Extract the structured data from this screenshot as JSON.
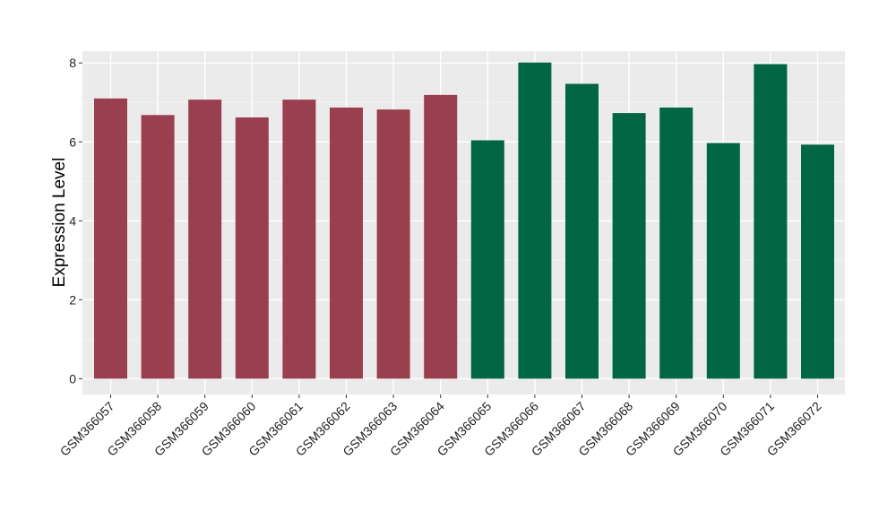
{
  "chart_data": {
    "type": "bar",
    "title": "",
    "xlabel": "",
    "ylabel": "Expression Level",
    "ylim": [
      -0.4,
      8.3
    ],
    "yticks": [
      0,
      2,
      4,
      6,
      8
    ],
    "grid": true,
    "legend": "none",
    "categories": [
      "GSM366057",
      "GSM366058",
      "GSM366059",
      "GSM366060",
      "GSM366061",
      "GSM366062",
      "GSM366063",
      "GSM366064",
      "GSM366065",
      "GSM366066",
      "GSM366067",
      "GSM366068",
      "GSM366069",
      "GSM366070",
      "GSM366071",
      "GSM366072"
    ],
    "values": [
      7.1,
      6.68,
      7.07,
      6.62,
      7.07,
      6.87,
      6.82,
      7.19,
      6.04,
      8.01,
      7.47,
      6.73,
      6.87,
      5.97,
      7.97,
      5.93
    ],
    "bar_colors": [
      "#9A3F4F",
      "#9A3F4F",
      "#9A3F4F",
      "#9A3F4F",
      "#9A3F4F",
      "#9A3F4F",
      "#9A3F4F",
      "#9A3F4F",
      "#006644",
      "#006644",
      "#006644",
      "#006644",
      "#006644",
      "#006644",
      "#006644",
      "#006644"
    ]
  }
}
